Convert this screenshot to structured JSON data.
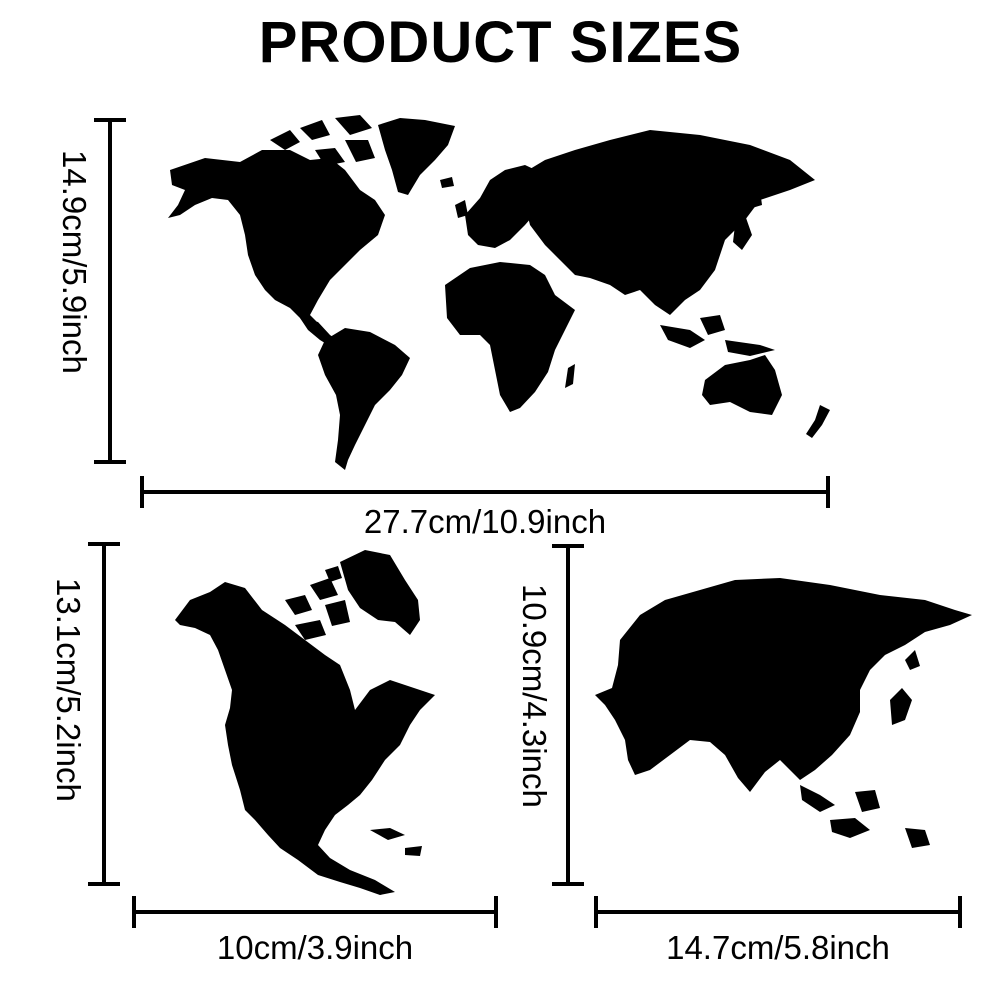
{
  "title": "PRODUCT SIZES",
  "colors": {
    "ink": "#000000",
    "background": "#ffffff"
  },
  "stencils": [
    {
      "name": "World Map",
      "height_label": "14.9cm/5.9inch",
      "width_label": "27.7cm/10.9inch"
    },
    {
      "name": "North America",
      "height_label": "13.1cm/5.2inch",
      "width_label": "10cm/3.9inch"
    },
    {
      "name": "Asia",
      "height_label": "10.9cm/4.3inch",
      "width_label": "14.7cm/5.8inch"
    }
  ]
}
